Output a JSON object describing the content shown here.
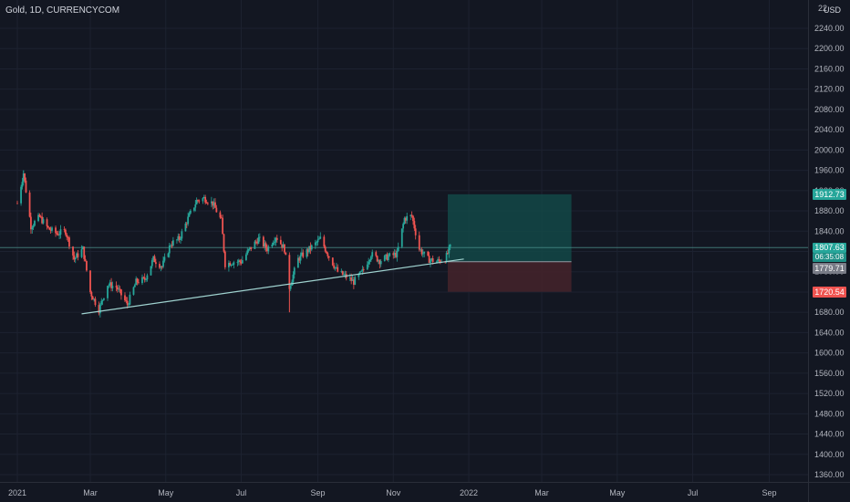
{
  "header": {
    "title": "Gold, 1D, CURRENCYCOM",
    "currency": "USD"
  },
  "price_axis": {
    "ticks": [
      "2240.00",
      "2200.00",
      "2160.00",
      "2120.00",
      "2080.00",
      "2040.00",
      "2000.00",
      "1960.00",
      "1920.00",
      "1880.00",
      "1840.00",
      "1800.00",
      "1760.00",
      "1720.00",
      "1680.00",
      "1640.00",
      "1600.00",
      "1560.00",
      "1520.00",
      "1480.00",
      "1440.00",
      "1400.00",
      "1360.00"
    ],
    "top_partial": "22"
  },
  "time_axis": {
    "labels": [
      "2021",
      "Mar",
      "May",
      "Jul",
      "Sep",
      "Nov",
      "2022",
      "Mar",
      "May",
      "Jul",
      "Sep"
    ]
  },
  "price_tags": {
    "take_profit": "1912.73",
    "last_price": "1807.63",
    "countdown": "06:35:08",
    "entry": "1779.71",
    "stop_loss": "1720.54"
  },
  "colors": {
    "background": "#131722",
    "up": "#26a69a",
    "down": "#ef5350",
    "take_profit_zone": "#134846",
    "stop_loss_zone": "#43222a",
    "trendline": "#9fd2cf",
    "axis_text": "#b2b5be"
  },
  "chart_data": {
    "type": "candlestick",
    "symbol": "Gold",
    "interval": "1D",
    "ylim": [
      1340,
      2260
    ],
    "close_path": [
      [
        "2021-01-01",
        1895
      ],
      [
        "2021-01-06",
        1955
      ],
      [
        "2021-01-12",
        1850
      ],
      [
        "2021-01-19",
        1868
      ],
      [
        "2021-01-26",
        1845
      ],
      [
        "2021-02-02",
        1835
      ],
      [
        "2021-02-09",
        1840
      ],
      [
        "2021-02-16",
        1785
      ],
      [
        "2021-02-23",
        1805
      ],
      [
        "2021-03-01",
        1720
      ],
      [
        "2021-03-08",
        1685
      ],
      [
        "2021-03-15",
        1735
      ],
      [
        "2021-03-22",
        1730
      ],
      [
        "2021-03-31",
        1695
      ],
      [
        "2021-04-07",
        1740
      ],
      [
        "2021-04-14",
        1745
      ],
      [
        "2021-04-21",
        1785
      ],
      [
        "2021-04-28",
        1770
      ],
      [
        "2021-05-05",
        1815
      ],
      [
        "2021-05-12",
        1825
      ],
      [
        "2021-05-19",
        1865
      ],
      [
        "2021-05-26",
        1900
      ],
      [
        "2021-06-01",
        1905
      ],
      [
        "2021-06-08",
        1895
      ],
      [
        "2021-06-15",
        1860
      ],
      [
        "2021-06-18",
        1775
      ],
      [
        "2021-06-25",
        1780
      ],
      [
        "2021-07-01",
        1780
      ],
      [
        "2021-07-08",
        1805
      ],
      [
        "2021-07-15",
        1825
      ],
      [
        "2021-07-22",
        1805
      ],
      [
        "2021-07-29",
        1830
      ],
      [
        "2021-08-05",
        1805
      ],
      [
        "2021-08-09",
        1730
      ],
      [
        "2021-08-16",
        1785
      ],
      [
        "2021-08-23",
        1800
      ],
      [
        "2021-08-30",
        1815
      ],
      [
        "2021-09-03",
        1825
      ],
      [
        "2021-09-10",
        1790
      ],
      [
        "2021-09-17",
        1760
      ],
      [
        "2021-09-24",
        1750
      ],
      [
        "2021-09-30",
        1740
      ],
      [
        "2021-10-07",
        1760
      ],
      [
        "2021-10-14",
        1795
      ],
      [
        "2021-10-21",
        1782
      ],
      [
        "2021-10-28",
        1790
      ],
      [
        "2021-11-04",
        1795
      ],
      [
        "2021-11-10",
        1865
      ],
      [
        "2021-11-16",
        1870
      ],
      [
        "2021-11-22",
        1805
      ],
      [
        "2021-11-29",
        1785
      ],
      [
        "2021-12-06",
        1780
      ],
      [
        "2021-12-13",
        1785
      ],
      [
        "2021-12-17",
        1808
      ]
    ],
    "notable_wicks": [
      [
        "2021-08-09",
        1680
      ],
      [
        "2021-01-06",
        1960
      ]
    ],
    "last_price": 1807.63,
    "trendline": {
      "from": [
        "2021-02-22",
        1677
      ],
      "to": [
        "2021-12-28",
        1785
      ]
    },
    "horizontal_line": 1807.63,
    "long_position": {
      "start": "2021-12-15",
      "end": "2022-03-25",
      "entry": 1779.71,
      "take_profit": 1912.73,
      "stop_loss": 1720.54
    }
  }
}
